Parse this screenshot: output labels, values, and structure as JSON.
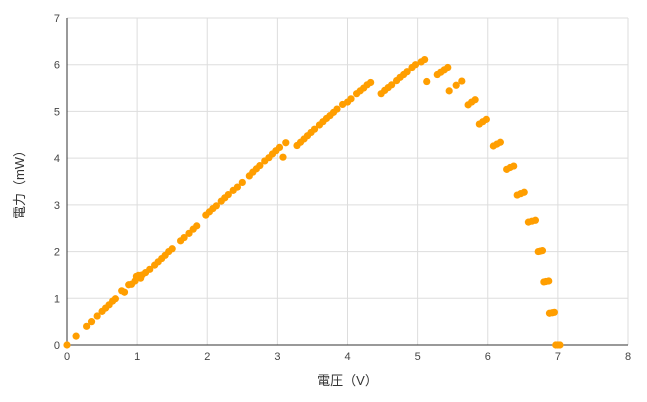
{
  "chart_data": {
    "type": "scatter",
    "xlabel": "電圧（V）",
    "ylabel": "電力（mW）",
    "xlim": [
      0,
      8
    ],
    "ylim": [
      0,
      7
    ],
    "x_ticks": [
      "0",
      "1",
      "2",
      "3",
      "4",
      "5",
      "6",
      "7",
      "8"
    ],
    "y_ticks": [
      "0",
      "1",
      "2",
      "3",
      "4",
      "5",
      "6",
      "7"
    ],
    "grid": true,
    "legend": "none",
    "color": "#ff9e00",
    "series": [
      {
        "points": [
          [
            0.0,
            0.0
          ],
          [
            0.13,
            0.19
          ],
          [
            0.28,
            0.4
          ],
          [
            0.35,
            0.5
          ],
          [
            0.43,
            0.62
          ],
          [
            0.5,
            0.72
          ],
          [
            0.55,
            0.79
          ],
          [
            0.6,
            0.86
          ],
          [
            0.65,
            0.94
          ],
          [
            0.69,
            0.99
          ],
          [
            0.78,
            1.16
          ],
          [
            0.82,
            1.13
          ],
          [
            0.88,
            1.29
          ],
          [
            0.92,
            1.3
          ],
          [
            0.97,
            1.37
          ],
          [
            0.99,
            1.47
          ],
          [
            1.02,
            1.49
          ],
          [
            1.05,
            1.43
          ],
          [
            1.07,
            1.5
          ],
          [
            1.12,
            1.55
          ],
          [
            1.18,
            1.62
          ],
          [
            1.25,
            1.71
          ],
          [
            1.3,
            1.78
          ],
          [
            1.35,
            1.85
          ],
          [
            1.4,
            1.92
          ],
          [
            1.45,
            2.0
          ],
          [
            1.5,
            2.06
          ],
          [
            1.62,
            2.23
          ],
          [
            1.67,
            2.3
          ],
          [
            1.74,
            2.39
          ],
          [
            1.8,
            2.48
          ],
          [
            1.85,
            2.55
          ],
          [
            1.98,
            2.78
          ],
          [
            2.03,
            2.85
          ],
          [
            2.08,
            2.92
          ],
          [
            2.13,
            2.98
          ],
          [
            2.2,
            3.08
          ],
          [
            2.25,
            3.15
          ],
          [
            2.3,
            3.22
          ],
          [
            2.37,
            3.31
          ],
          [
            2.43,
            3.38
          ],
          [
            2.5,
            3.48
          ],
          [
            2.6,
            3.62
          ],
          [
            2.65,
            3.7
          ],
          [
            2.7,
            3.77
          ],
          [
            2.75,
            3.84
          ],
          [
            2.82,
            3.94
          ],
          [
            2.88,
            4.01
          ],
          [
            2.93,
            4.09
          ],
          [
            2.98,
            4.16
          ],
          [
            3.03,
            4.23
          ],
          [
            3.08,
            4.02
          ],
          [
            3.12,
            4.33
          ],
          [
            3.28,
            4.27
          ],
          [
            3.33,
            4.34
          ],
          [
            3.38,
            4.41
          ],
          [
            3.43,
            4.48
          ],
          [
            3.48,
            4.55
          ],
          [
            3.53,
            4.62
          ],
          [
            3.6,
            4.71
          ],
          [
            3.65,
            4.78
          ],
          [
            3.7,
            4.85
          ],
          [
            3.75,
            4.91
          ],
          [
            3.8,
            4.98
          ],
          [
            3.85,
            5.05
          ],
          [
            3.93,
            5.15
          ],
          [
            4.0,
            5.2
          ],
          [
            4.05,
            5.27
          ],
          [
            4.13,
            5.38
          ],
          [
            4.18,
            5.44
          ],
          [
            4.23,
            5.5
          ],
          [
            4.28,
            5.57
          ],
          [
            4.33,
            5.62
          ],
          [
            4.48,
            5.38
          ],
          [
            4.53,
            5.45
          ],
          [
            4.58,
            5.51
          ],
          [
            4.63,
            5.57
          ],
          [
            4.7,
            5.66
          ],
          [
            4.75,
            5.73
          ],
          [
            4.8,
            5.79
          ],
          [
            4.85,
            5.85
          ],
          [
            4.92,
            5.94
          ],
          [
            4.97,
            6.0
          ],
          [
            5.05,
            6.06
          ],
          [
            5.1,
            6.11
          ],
          [
            5.13,
            5.64
          ],
          [
            5.28,
            5.79
          ],
          [
            5.33,
            5.84
          ],
          [
            5.38,
            5.89
          ],
          [
            5.43,
            5.94
          ],
          [
            5.45,
            5.44
          ],
          [
            5.55,
            5.56
          ],
          [
            5.63,
            5.65
          ],
          [
            5.72,
            5.14
          ],
          [
            5.77,
            5.2
          ],
          [
            5.82,
            5.25
          ],
          [
            5.88,
            4.73
          ],
          [
            5.93,
            4.78
          ],
          [
            5.98,
            4.83
          ],
          [
            6.08,
            4.26
          ],
          [
            6.13,
            4.3
          ],
          [
            6.18,
            4.34
          ],
          [
            6.27,
            3.76
          ],
          [
            6.32,
            3.8
          ],
          [
            6.37,
            3.83
          ],
          [
            6.42,
            3.21
          ],
          [
            6.47,
            3.24
          ],
          [
            6.52,
            3.27
          ],
          [
            6.58,
            2.63
          ],
          [
            6.63,
            2.65
          ],
          [
            6.68,
            2.67
          ],
          [
            6.72,
            2.0
          ],
          [
            6.75,
            2.01
          ],
          [
            6.78,
            2.02
          ],
          [
            6.8,
            1.35
          ],
          [
            6.83,
            1.36
          ],
          [
            6.87,
            1.37
          ],
          [
            6.88,
            0.68
          ],
          [
            6.92,
            0.69
          ],
          [
            6.95,
            0.7
          ],
          [
            6.97,
            0.0
          ],
          [
            7.0,
            0.0
          ],
          [
            7.03,
            0.0
          ]
        ]
      }
    ]
  }
}
